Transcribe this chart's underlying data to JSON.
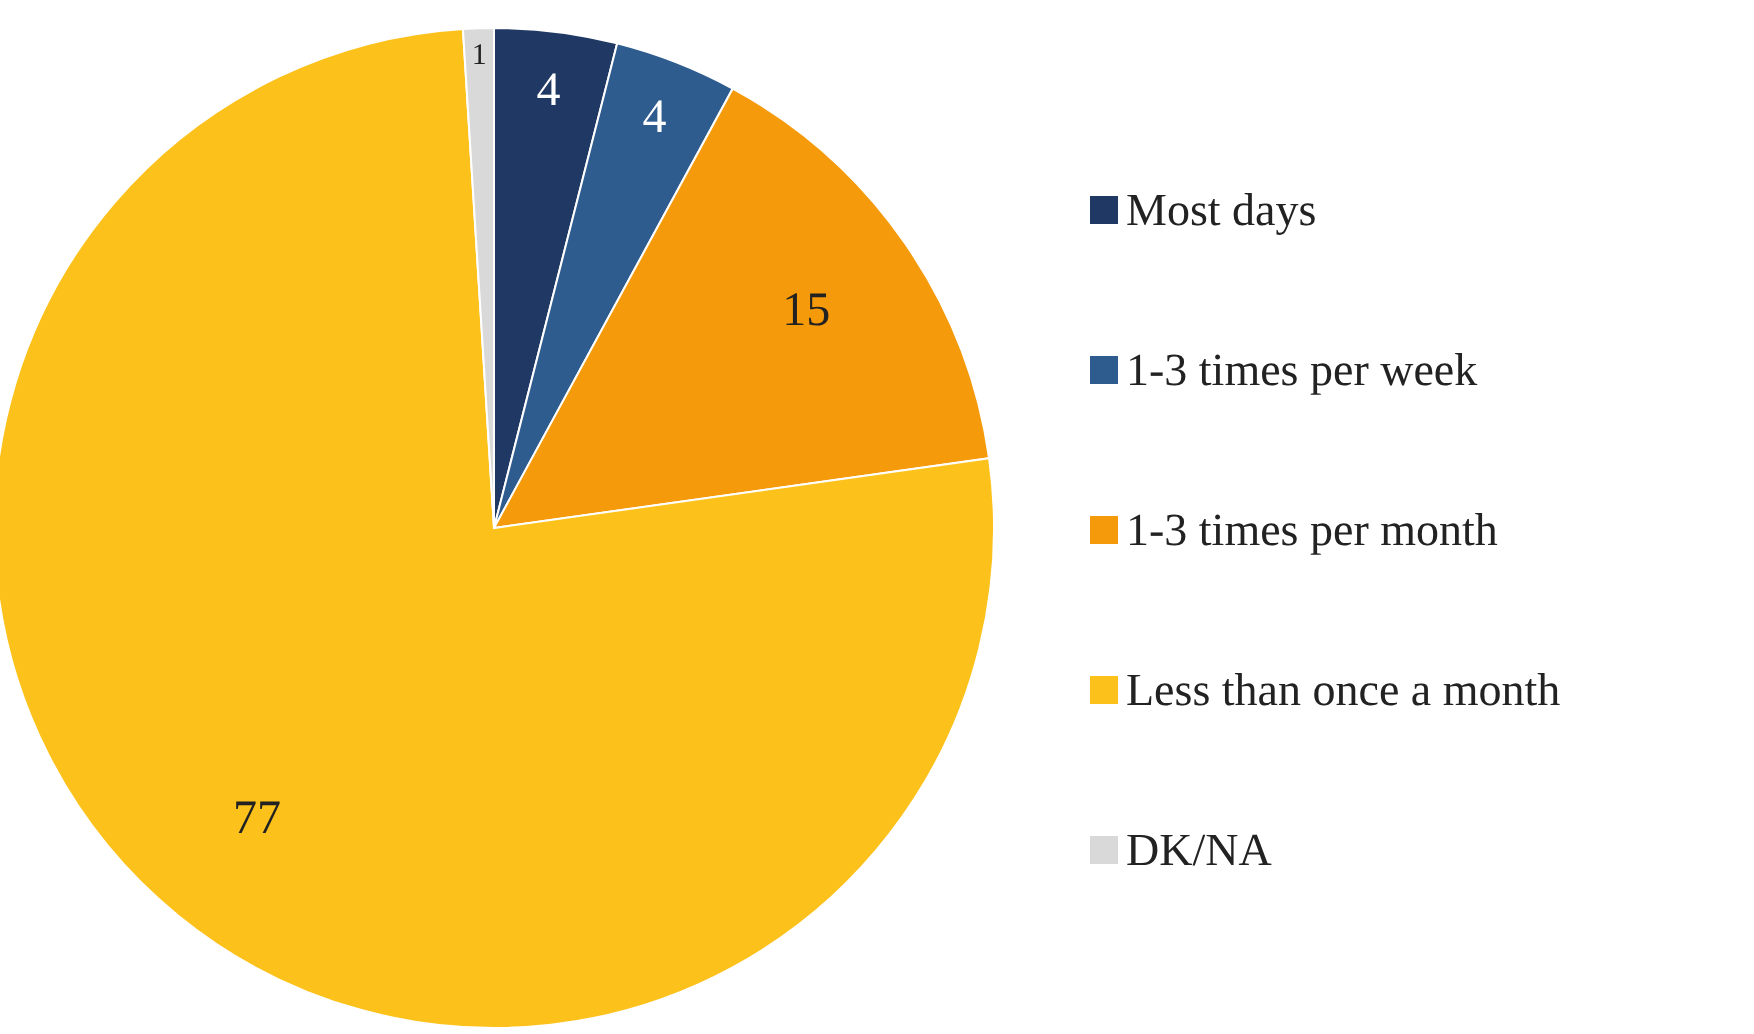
{
  "chart_data": {
    "type": "pie",
    "categories": [
      "Most days",
      "1-3 times per week",
      "1-3 times per month",
      "Less than once a month",
      "DK/NA"
    ],
    "values": [
      4,
      4,
      15,
      77,
      1
    ],
    "colors": [
      "#1f3864",
      "#2f5c8f",
      "#f59a0a",
      "#fcc21b",
      "#d9d9d9"
    ],
    "data_labels": true,
    "legend": "right"
  }
}
